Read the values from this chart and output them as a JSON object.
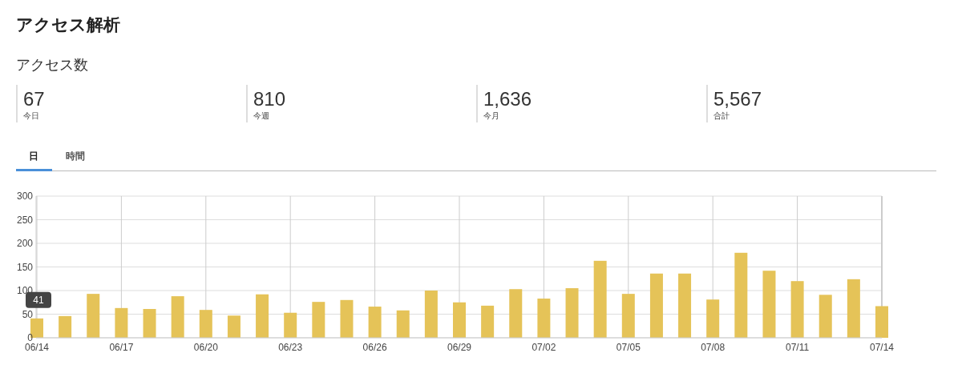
{
  "chart_data": [
    {
      "type": "other",
      "title": "アクセス解析",
      "subtitle": "アクセス数",
      "categories": [
        "今日",
        "今週",
        "今月",
        "合計"
      ],
      "value_labels": [
        "67",
        "810",
        "1,636",
        "5,567"
      ],
      "annotations": [
        "日",
        "時間"
      ]
    },
    {
      "type": "bar",
      "categories": [
        "06/14",
        null,
        null,
        "06/17",
        null,
        null,
        "06/20",
        null,
        null,
        "06/23",
        null,
        null,
        "06/26",
        null,
        null,
        "06/29",
        null,
        null,
        "07/02",
        null,
        null,
        "07/05",
        null,
        null,
        "07/08",
        null,
        null,
        "07/11",
        null,
        null,
        "07/14"
      ],
      "values": [
        41,
        46,
        93,
        63,
        61,
        88,
        59,
        47,
        92,
        53,
        76,
        80,
        66,
        58,
        100,
        75,
        68,
        103,
        83,
        105,
        163,
        93,
        136,
        136,
        81,
        180,
        142,
        120,
        91,
        124,
        67
      ],
      "color": "#e5c358",
      "ylim": [
        0,
        300
      ],
      "yticks": [
        0,
        50,
        100,
        150,
        200,
        250,
        300
      ],
      "grid": true,
      "annotations": [
        {
          "text": "41",
          "x": "06/14",
          "y": 41
        }
      ]
    }
  ]
}
